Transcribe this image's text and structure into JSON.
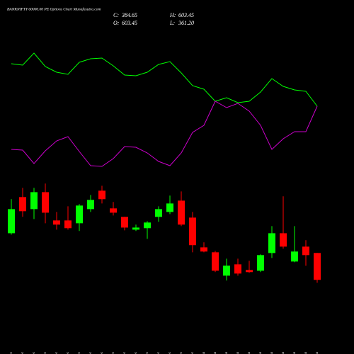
{
  "chart_data": {
    "type": "candlestick",
    "title": "BANKNIFTY 60000.00 PE Options Chart Munafasutra.com",
    "ohlc": [
      {
        "label": "C:",
        "value": 384.65
      },
      {
        "label": "O:",
        "value": 603.45
      },
      {
        "label": "H:",
        "value": 603.45
      },
      {
        "label": "L:",
        "value": 361.2,
        "value_label": "361.20"
      }
    ],
    "categories": [
      "06 Dec",
      "09 Dec",
      "10 Dec",
      "11 Dec",
      "12 Dec",
      "13 Dec",
      "16 Dec",
      "17 Dec",
      "18 Dec",
      "19 Dec",
      "20 Dec",
      "23 Dec",
      "24 Dec",
      "26 Dec",
      "27 Dec",
      "30 Dec",
      "31 Dec",
      "01 Jan",
      "02 Jan",
      "03 Jan",
      "06 Jan",
      "07 Jan",
      "08 Jan",
      "09 Jan",
      "10 Jan",
      "13 Jan",
      "14 Jan",
      "15 Jan"
    ],
    "open": [
      764,
      1058,
      960,
      1098,
      868,
      868,
      845,
      960,
      1110,
      966,
      897,
      793,
      805,
      897,
      937,
      1029,
      891,
      649,
      609,
      419,
      511,
      465,
      459,
      603,
      764,
      534,
      655,
      603.45
    ],
    "close": [
      960,
      943,
      1098,
      931,
      834,
      805,
      989,
      1035,
      1041,
      931,
      810,
      810,
      851,
      960,
      1006,
      834,
      667,
      615,
      459,
      500,
      436,
      448,
      586,
      764,
      655,
      615,
      586,
      384.65
    ],
    "high": [
      1041,
      1133,
      1133,
      1168,
      937,
      983,
      1001,
      1075,
      1150,
      1018,
      897,
      834,
      862,
      983,
      1070,
      1104,
      937,
      690,
      620,
      557,
      557,
      540,
      592,
      822,
      1064,
      822,
      707,
      603.45
    ],
    "low": [
      753,
      897,
      879,
      845,
      793,
      793,
      782,
      937,
      1006,
      908,
      787,
      782,
      718,
      857,
      920,
      822,
      609,
      609,
      448,
      379,
      419,
      442,
      448,
      563,
      638,
      528,
      499,
      361.2
    ],
    "up_color": "#00ff00",
    "down_color": "#ff0000",
    "ylim": [
      300,
      1250
    ],
    "y2lim": [
      0,
      200
    ],
    "series": [
      {
        "color": "#00ff00",
        "axis": "y2",
        "values": [
          160,
          158,
          175,
          156,
          148,
          145,
          162,
          167,
          168,
          157,
          144,
          143,
          148,
          159,
          163,
          147,
          129,
          124,
          107,
          112,
          105,
          107,
          120,
          139,
          128,
          123,
          121,
          100
        ]
      },
      {
        "color": "#cc00cc",
        "axis": "y2",
        "values": [
          39,
          38,
          19,
          37,
          51,
          57,
          36,
          16,
          15,
          26,
          43,
          42,
          34,
          22,
          16,
          34,
          63,
          73,
          107,
          98,
          104,
          93,
          73,
          39,
          54,
          64,
          64,
          100
        ]
      }
    ]
  }
}
